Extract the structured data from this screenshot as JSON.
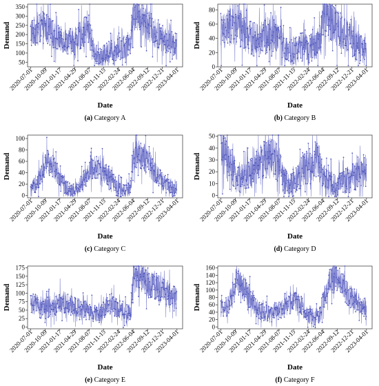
{
  "chart_data": [
    {
      "type": "line",
      "panel_label": "(a)",
      "caption": "Category A",
      "xlabel": "Date",
      "ylabel": "Demand",
      "ylim": [
        25,
        365
      ],
      "yticks": [
        50,
        100,
        150,
        200,
        250,
        300,
        350
      ],
      "xlim": [
        "2020-06-10",
        "2023-05-10"
      ],
      "xticks": [
        "2020-07-01",
        "2020-10-09",
        "2021-01-17",
        "2021-04-29",
        "2021-08-07",
        "2021-11-15",
        "2022-02-24",
        "2022-06-04",
        "2022-09-12",
        "2022-12-21",
        "2023-04-01"
      ],
      "series": [
        {
          "x": [
            "2020-07-01",
            "2020-08-15",
            "2020-09-30",
            "2020-10-20",
            "2020-12-01",
            "2021-01-17",
            "2021-03-01",
            "2021-04-29",
            "2021-06-10",
            "2021-08-07",
            "2021-09-05",
            "2021-10-10",
            "2021-11-15",
            "2022-01-01",
            "2022-02-24",
            "2022-04-15",
            "2022-05-20",
            "2022-06-04",
            "2022-07-20",
            "2022-09-12",
            "2022-11-01",
            "2022-12-21",
            "2023-02-10",
            "2023-04-01"
          ],
          "values": [
            210,
            225,
            240,
            230,
            200,
            175,
            165,
            160,
            200,
            230,
            120,
            70,
            90,
            110,
            125,
            130,
            170,
            330,
            310,
            260,
            200,
            180,
            155,
            140
          ],
          "amplitude": 90
        }
      ]
    },
    {
      "type": "line",
      "panel_label": "(b)",
      "caption": "Category B",
      "xlabel": "Date",
      "ylabel": "Demand",
      "ylim": [
        0,
        88
      ],
      "yticks": [
        0,
        20,
        40,
        60,
        80
      ],
      "xlim": [
        "2020-06-10",
        "2023-05-10"
      ],
      "xticks": [
        "2020-07-01",
        "2020-10-09",
        "2021-01-17",
        "2021-04-29",
        "2021-08-07",
        "2021-11-15",
        "2022-02-24",
        "2022-06-04",
        "2022-09-12",
        "2022-12-21",
        "2023-04-01"
      ],
      "series": [
        {
          "x": [
            "2020-07-01",
            "2020-08-15",
            "2020-09-30",
            "2020-10-20",
            "2020-12-01",
            "2021-01-17",
            "2021-03-01",
            "2021-04-29",
            "2021-06-10",
            "2021-08-07",
            "2021-09-05",
            "2021-10-10",
            "2021-11-15",
            "2022-01-01",
            "2022-02-24",
            "2022-04-15",
            "2022-05-20",
            "2022-06-04",
            "2022-07-20",
            "2022-09-12",
            "2022-11-01",
            "2022-12-21",
            "2023-02-10",
            "2023-04-01"
          ],
          "values": [
            48,
            55,
            60,
            58,
            50,
            40,
            38,
            42,
            50,
            45,
            28,
            18,
            22,
            28,
            25,
            28,
            40,
            70,
            72,
            55,
            45,
            38,
            28,
            20
          ],
          "amplitude": 32
        }
      ]
    },
    {
      "type": "line",
      "panel_label": "(c)",
      "caption": "Category C",
      "xlabel": "Date",
      "ylabel": "Demand",
      "ylim": [
        -4,
        106
      ],
      "yticks": [
        0,
        20,
        40,
        60,
        80,
        100
      ],
      "xlim": [
        "2020-06-10",
        "2023-05-10"
      ],
      "xticks": [
        "2020-07-01",
        "2020-10-09",
        "2021-01-17",
        "2021-04-29",
        "2021-08-07",
        "2021-11-15",
        "2022-02-24",
        "2022-06-04",
        "2022-09-12",
        "2022-12-21",
        "2023-04-01"
      ],
      "series": [
        {
          "x": [
            "2020-07-01",
            "2020-08-15",
            "2020-09-30",
            "2020-10-20",
            "2020-12-01",
            "2021-01-17",
            "2021-03-01",
            "2021-04-29",
            "2021-06-10",
            "2021-08-07",
            "2021-09-05",
            "2021-10-10",
            "2021-11-15",
            "2022-01-01",
            "2022-02-24",
            "2022-04-15",
            "2022-05-20",
            "2022-06-04",
            "2022-07-20",
            "2022-09-12",
            "2022-11-01",
            "2022-12-21",
            "2023-02-10",
            "2023-04-01"
          ],
          "values": [
            8,
            25,
            45,
            60,
            55,
            30,
            12,
            8,
            20,
            40,
            48,
            50,
            45,
            30,
            10,
            6,
            15,
            70,
            75,
            60,
            40,
            25,
            15,
            12
          ],
          "amplitude": 28
        }
      ]
    },
    {
      "type": "line",
      "panel_label": "(d)",
      "caption": "Category D",
      "xlabel": "Date",
      "ylabel": "Demand",
      "ylim": [
        -2,
        51
      ],
      "yticks": [
        0,
        10,
        20,
        30,
        40,
        50
      ],
      "xlim": [
        "2020-06-10",
        "2023-05-10"
      ],
      "xticks": [
        "2020-07-01",
        "2020-10-09",
        "2021-01-17",
        "2021-04-29",
        "2021-08-07",
        "2021-11-15",
        "2022-02-24",
        "2022-06-04",
        "2022-09-12",
        "2022-12-21",
        "2023-04-01"
      ],
      "series": [
        {
          "x": [
            "2020-07-01",
            "2020-08-15",
            "2020-09-30",
            "2020-10-20",
            "2020-12-01",
            "2021-01-17",
            "2021-03-01",
            "2021-04-29",
            "2021-06-10",
            "2021-08-07",
            "2021-09-05",
            "2021-10-10",
            "2021-11-15",
            "2022-01-01",
            "2022-02-24",
            "2022-04-15",
            "2022-05-20",
            "2022-06-04",
            "2022-07-20",
            "2022-09-12",
            "2022-11-01",
            "2022-12-21",
            "2023-02-10",
            "2023-04-01"
          ],
          "values": [
            38,
            28,
            20,
            15,
            14,
            18,
            25,
            30,
            32,
            28,
            15,
            8,
            10,
            18,
            25,
            30,
            26,
            15,
            10,
            8,
            12,
            15,
            20,
            22
          ],
          "amplitude": 20
        }
      ]
    },
    {
      "type": "line",
      "panel_label": "(e)",
      "caption": "Category E",
      "xlabel": "Date",
      "ylabel": "Demand",
      "ylim": [
        -5,
        180
      ],
      "yticks": [
        0,
        25,
        50,
        75,
        100,
        125,
        150,
        175
      ],
      "xlim": [
        "2020-06-10",
        "2023-05-10"
      ],
      "xticks": [
        "2020-07-01",
        "2020-10-09",
        "2021-01-17",
        "2021-04-29",
        "2021-08-07",
        "2021-11-15",
        "2022-02-24",
        "2022-06-04",
        "2022-09-12",
        "2022-12-21",
        "2023-04-01"
      ],
      "series": [
        {
          "x": [
            "2020-07-01",
            "2020-08-15",
            "2020-09-30",
            "2020-10-20",
            "2020-12-01",
            "2021-01-17",
            "2021-03-01",
            "2021-04-29",
            "2021-06-10",
            "2021-08-07",
            "2021-09-05",
            "2021-10-10",
            "2021-11-15",
            "2022-01-01",
            "2022-02-24",
            "2022-04-15",
            "2022-05-20",
            "2022-06-04",
            "2022-07-20",
            "2022-09-12",
            "2022-11-01",
            "2022-12-21",
            "2023-02-10",
            "2023-04-01"
          ],
          "values": [
            70,
            65,
            60,
            55,
            55,
            80,
            70,
            60,
            55,
            45,
            40,
            35,
            50,
            70,
            55,
            45,
            40,
            140,
            150,
            130,
            120,
            110,
            100,
            80
          ],
          "amplitude": 45
        }
      ]
    },
    {
      "type": "line",
      "panel_label": "(f)",
      "caption": "Category F",
      "xlabel": "Date",
      "ylabel": "Demand",
      "ylim": [
        -5,
        165
      ],
      "yticks": [
        0,
        20,
        40,
        60,
        80,
        100,
        120,
        140,
        160
      ],
      "xlim": [
        "2020-06-10",
        "2023-05-10"
      ],
      "xticks": [
        "2020-07-01",
        "2020-10-09",
        "2021-01-17",
        "2021-04-29",
        "2021-08-07",
        "2021-11-15",
        "2022-02-24",
        "2022-06-04",
        "2022-09-12",
        "2022-12-21",
        "2023-04-01"
      ],
      "series": [
        {
          "x": [
            "2020-07-01",
            "2020-08-15",
            "2020-09-30",
            "2020-10-20",
            "2020-12-01",
            "2021-01-17",
            "2021-03-01",
            "2021-04-29",
            "2021-06-10",
            "2021-08-07",
            "2021-09-05",
            "2021-10-10",
            "2021-11-15",
            "2022-01-01",
            "2022-02-24",
            "2022-04-15",
            "2022-05-20",
            "2022-06-04",
            "2022-07-20",
            "2022-09-12",
            "2022-11-01",
            "2022-12-21",
            "2023-02-10",
            "2023-04-01"
          ],
          "values": [
            50,
            55,
            100,
            130,
            110,
            80,
            50,
            40,
            35,
            45,
            50,
            60,
            70,
            60,
            30,
            25,
            35,
            70,
            120,
            140,
            100,
            80,
            60,
            50
          ],
          "amplitude": 40
        }
      ]
    }
  ]
}
